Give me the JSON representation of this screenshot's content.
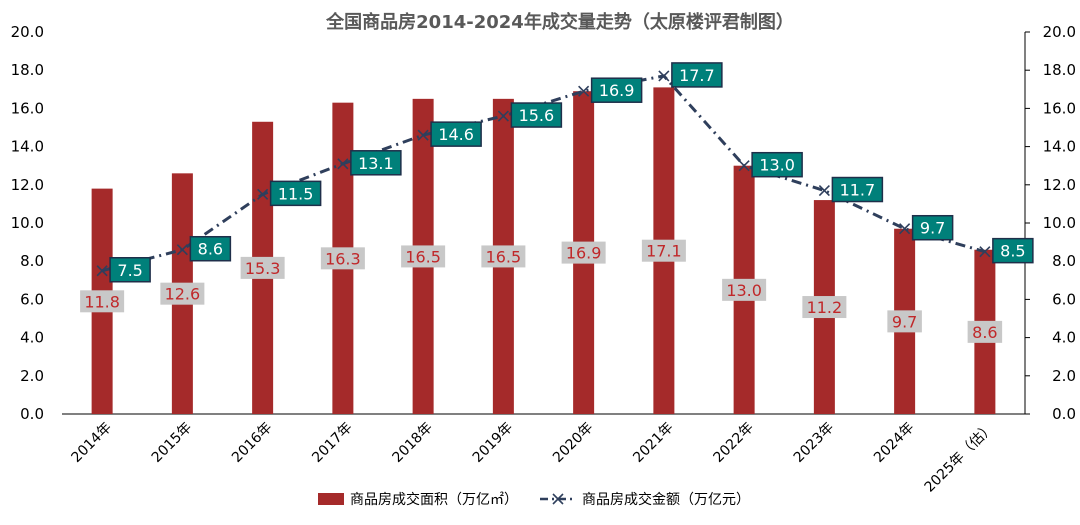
{
  "chart_data": {
    "type": "bar",
    "title": "全国商品房2014-2024年成交量走势（太原楼评君制图）",
    "categories": [
      "2014年",
      "2015年",
      "2016年",
      "2017年",
      "2018年",
      "2019年",
      "2020年",
      "2021年",
      "2022年",
      "2023年",
      "2024年",
      "2025年（估）"
    ],
    "y_left": {
      "min": 0,
      "max": 20,
      "step": 2,
      "ticks": [
        "0.0",
        "2.0",
        "4.0",
        "6.0",
        "8.0",
        "10.0",
        "12.0",
        "14.0",
        "16.0",
        "18.0",
        "20.0"
      ]
    },
    "y_right": {
      "min": 0,
      "max": 20,
      "step": 2,
      "ticks": [
        "0.0",
        "2.0",
        "4.0",
        "6.0",
        "8.0",
        "10.0",
        "12.0",
        "14.0",
        "16.0",
        "18.0",
        "20.0"
      ]
    },
    "grid": false,
    "legend_position": "bottom",
    "series": [
      {
        "name": "商品房成交面积（万亿㎡）",
        "kind": "bar",
        "axis": "left",
        "color": "#a52a2a",
        "values": [
          11.8,
          12.6,
          15.3,
          16.3,
          16.5,
          16.5,
          16.9,
          17.1,
          13.0,
          11.2,
          9.7,
          8.6
        ],
        "labels": [
          "11.8",
          "12.6",
          "15.3",
          "16.3",
          "16.5",
          "16.5",
          "16.9",
          "17.1",
          "13.0",
          "11.2",
          "9.7",
          "8.6"
        ],
        "label_bg": "#c8c8c8",
        "label_color": "#c0282a"
      },
      {
        "name": "商品房成交金额（万亿元）",
        "kind": "line",
        "axis": "right",
        "color": "#2f3f5c",
        "marker": "x",
        "line_style": "dash-dot",
        "values": [
          7.5,
          8.6,
          11.5,
          13.1,
          14.6,
          15.6,
          16.9,
          17.7,
          13.0,
          11.7,
          9.7,
          8.5
        ],
        "labels": [
          "7.5",
          "8.6",
          "11.5",
          "13.1",
          "14.6",
          "15.6",
          "16.9",
          "17.7",
          "13.0",
          "11.7",
          "9.7",
          "8.5"
        ],
        "label_bg": "#00807a",
        "label_border": "#1f2f4a",
        "label_color": "#ffffff"
      }
    ]
  }
}
